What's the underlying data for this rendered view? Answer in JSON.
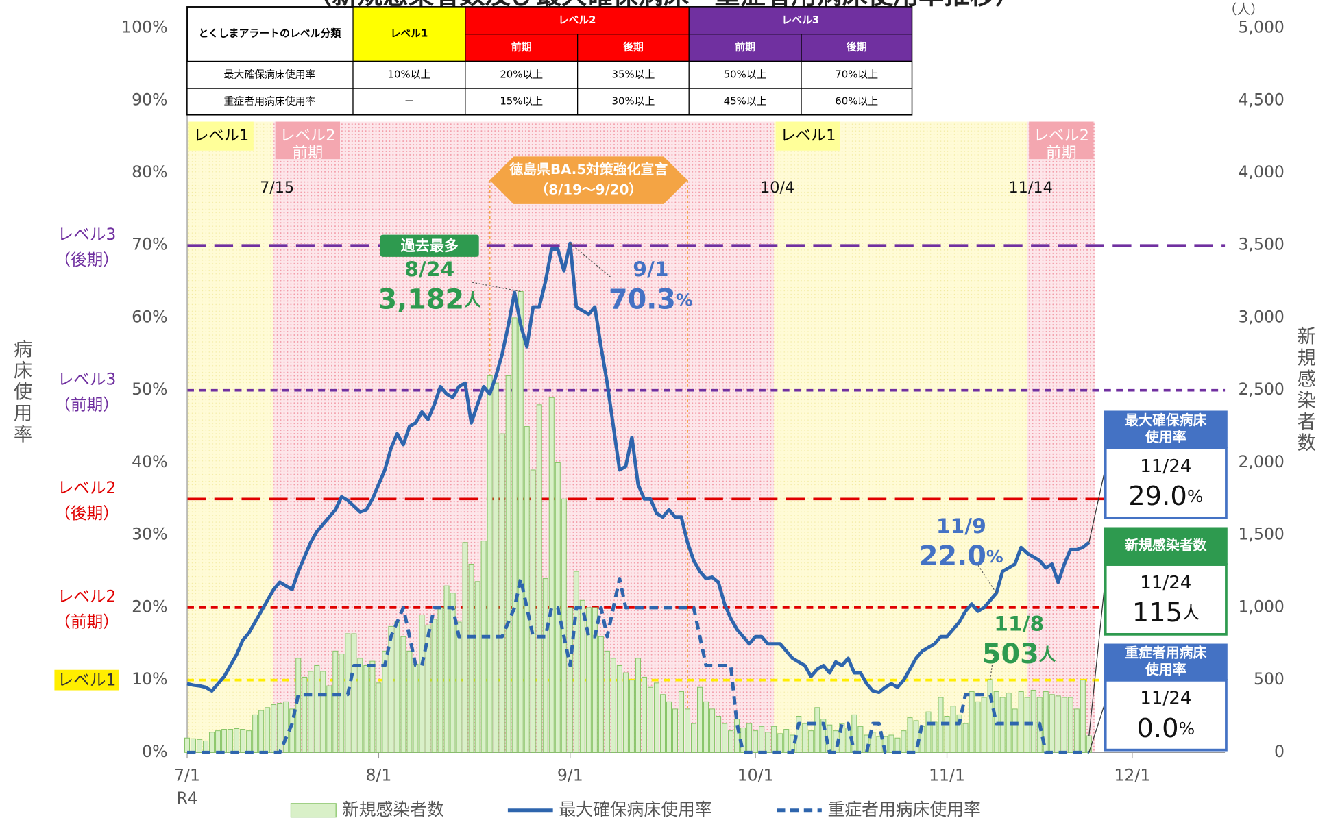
{
  "chart_data": {
    "type": "combo",
    "title": "（新規感染者数及び最大確保病床・重症者用病床使用率推移）",
    "y_label": [
      "病",
      "床",
      "使",
      "用",
      "率"
    ],
    "y2_label": [
      "新",
      "規",
      "感",
      "染",
      "者",
      "数"
    ],
    "y2_unit": "（人）",
    "x_sub_label": "R4",
    "xlim": [
      0,
      168
    ],
    "xticks": [
      {
        "value": 0,
        "label": "7/1"
      },
      {
        "value": 31,
        "label": "8/1"
      },
      {
        "value": 62,
        "label": "9/1"
      },
      {
        "value": 92,
        "label": "10/1"
      },
      {
        "value": 123,
        "label": "11/1"
      },
      {
        "value": 153,
        "label": "12/1"
      }
    ],
    "ylim": [
      0,
      100
    ],
    "yticks": [
      {
        "value": 0,
        "label": "0%"
      },
      {
        "value": 10,
        "label": "10%"
      },
      {
        "value": 20,
        "label": "20%"
      },
      {
        "value": 30,
        "label": "30%"
      },
      {
        "value": 40,
        "label": "40%"
      },
      {
        "value": 50,
        "label": "50%"
      },
      {
        "value": 60,
        "label": "60%"
      },
      {
        "value": 70,
        "label": "70%"
      },
      {
        "value": 80,
        "label": "80%"
      },
      {
        "value": 90,
        "label": "90%"
      },
      {
        "value": 100,
        "label": "100%"
      }
    ],
    "y2lim": [
      0,
      5000
    ],
    "y2ticks": [
      0,
      500,
      {
        "value": 1000,
        "label": "1,000"
      },
      {
        "value": 1500,
        "label": "1,500"
      },
      {
        "value": 2000,
        "label": "2,000"
      },
      {
        "value": 2500,
        "label": "2,500"
      },
      {
        "value": 3000,
        "label": "3,000"
      },
      {
        "value": 3500,
        "label": "3,500"
      },
      {
        "value": 4000,
        "label": "4,000"
      },
      {
        "value": 4500,
        "label": "4,500"
      },
      {
        "value": 5000,
        "label": "5,000"
      }
    ],
    "grid": false,
    "x": [
      0,
      1,
      2,
      3,
      4,
      5,
      6,
      7,
      8,
      9,
      10,
      11,
      12,
      13,
      14,
      15,
      16,
      17,
      18,
      19,
      20,
      21,
      22,
      23,
      24,
      25,
      26,
      27,
      28,
      29,
      30,
      31,
      32,
      33,
      34,
      35,
      36,
      37,
      38,
      39,
      40,
      41,
      42,
      43,
      44,
      45,
      46,
      47,
      48,
      49,
      50,
      51,
      52,
      53,
      54,
      55,
      56,
      57,
      58,
      59,
      60,
      61,
      62,
      63,
      64,
      65,
      66,
      67,
      68,
      69,
      70,
      71,
      72,
      73,
      74,
      75,
      76,
      77,
      78,
      79,
      80,
      81,
      82,
      83,
      84,
      85,
      86,
      87,
      88,
      89,
      90,
      91,
      92,
      93,
      94,
      95,
      96,
      97,
      98,
      99,
      100,
      101,
      102,
      103,
      104,
      105,
      106,
      107,
      108,
      109,
      110,
      111,
      112,
      113,
      114,
      115,
      116,
      117,
      118,
      119,
      120,
      121,
      122,
      123,
      124,
      125,
      126,
      127,
      128,
      129,
      130,
      131,
      132,
      133,
      134,
      135,
      136,
      137,
      138,
      139,
      140,
      141,
      142,
      143,
      144,
      145,
      146
    ],
    "series": [
      {
        "name": "新規感染者数",
        "type": "bar",
        "axis": "y2",
        "color": "#d9f0c8",
        "edge": "#86c466",
        "values": [
          100,
          95,
          90,
          80,
          140,
          150,
          160,
          160,
          165,
          160,
          150,
          260,
          290,
          310,
          330,
          340,
          350,
          300,
          650,
          520,
          560,
          600,
          560,
          460,
          700,
          680,
          820,
          820,
          650,
          600,
          630,
          480,
          700,
          870,
          900,
          800,
          700,
          610,
          950,
          880,
          920,
          1000,
          1150,
          1100,
          900,
          1450,
          1300,
          1180,
          1460,
          2600,
          2550,
          2200,
          2600,
          3000,
          3182,
          2250,
          1950,
          2400,
          1200,
          2450,
          2000,
          1750,
          1000,
          1250,
          1050,
          1000,
          1000,
          800,
          700,
          650,
          600,
          550,
          500,
          650,
          520,
          450,
          480,
          400,
          350,
          300,
          420,
          300,
          200,
          450,
          350,
          300,
          250,
          200,
          150,
          230,
          170,
          200,
          150,
          180,
          140,
          180,
          130,
          160,
          120,
          250,
          200,
          150,
          310,
          230,
          190,
          150,
          200,
          170,
          260,
          180,
          120,
          140,
          110,
          110,
          120,
          100,
          150,
          240,
          220,
          180,
          280,
          210,
          380,
          250,
          320,
          260,
          200,
          420,
          350,
          380,
          503,
          420,
          380,
          410,
          300,
          420,
          380,
          430,
          380,
          420,
          400,
          390,
          380,
          380,
          300,
          500,
          115
        ]
      },
      {
        "name": "最大確保病床使用率",
        "type": "line",
        "axis": "y",
        "color": "#2e65ad",
        "dash": false,
        "values": [
          9.5,
          9.3,
          9.2,
          9,
          8.5,
          9.5,
          10.5,
          12,
          13.5,
          15.5,
          16.5,
          18,
          19.5,
          21,
          22.5,
          23.5,
          23,
          22.5,
          25,
          27,
          29,
          30.5,
          31.5,
          32.5,
          33.5,
          35.3,
          34.8,
          34,
          33.2,
          33.5,
          35,
          37,
          39,
          42,
          44,
          42.5,
          45,
          45.5,
          47,
          46,
          48,
          50.5,
          49.5,
          49,
          50.5,
          51,
          45.5,
          48,
          50.5,
          49.5,
          52,
          55,
          59,
          63.5,
          59,
          56,
          61.5,
          61.5,
          65,
          69.5,
          69.5,
          66.5,
          70.3,
          61.5,
          61,
          60.5,
          61.5,
          56,
          51,
          45,
          39,
          39.5,
          43.5,
          37,
          35,
          35,
          33,
          32.5,
          33.5,
          32.5,
          32.5,
          29,
          26.5,
          25,
          24,
          24.2,
          23.5,
          20.5,
          18.5,
          17,
          16,
          15,
          16,
          16,
          15,
          15,
          15,
          14,
          13,
          12.5,
          12,
          10.5,
          11.5,
          12,
          11,
          12.5,
          12,
          13,
          11,
          11,
          9.5,
          8.5,
          8.3,
          9,
          9.5,
          9,
          10,
          11.5,
          13,
          14,
          14.5,
          15,
          16,
          16,
          17,
          18,
          19.5,
          20.5,
          19.5,
          20,
          21,
          22.0,
          25,
          25.5,
          26,
          28.3,
          27.5,
          27,
          26.5,
          25.5,
          26,
          23.5,
          26,
          28,
          28,
          28.3,
          29.0
        ]
      },
      {
        "name": "重症者用病床使用率",
        "type": "line",
        "axis": "y",
        "color": "#2e65ad",
        "dash": true,
        "values": [
          0,
          0,
          0,
          0,
          0,
          0,
          0,
          0,
          0,
          0,
          0,
          0,
          0,
          0,
          0,
          0,
          2,
          4,
          8,
          8,
          8,
          8,
          8,
          8,
          8,
          8,
          8,
          12,
          12,
          12,
          12,
          12,
          12,
          16,
          18,
          20,
          16,
          12,
          12,
          16,
          20,
          20,
          20,
          20,
          16,
          16,
          16,
          16,
          16,
          16,
          16,
          16,
          18,
          20,
          24,
          20,
          16,
          16,
          16,
          20,
          20,
          16,
          12,
          20,
          20,
          16,
          16,
          20,
          16,
          20,
          24,
          20,
          20,
          20,
          20,
          20,
          20,
          20,
          20,
          20,
          20,
          20,
          20,
          16,
          12,
          12,
          12,
          12,
          12,
          4,
          0,
          0,
          0,
          0,
          0,
          0,
          0,
          0,
          0,
          4,
          4,
          4,
          4,
          4,
          0,
          0,
          4,
          4,
          0,
          0,
          0,
          4,
          4,
          0,
          0,
          0,
          0,
          0,
          0,
          4,
          4,
          4,
          4,
          4,
          4,
          4,
          8,
          8,
          8,
          8,
          8,
          4,
          4,
          4,
          4,
          4,
          4,
          4,
          4,
          0,
          0,
          0,
          0,
          0,
          0,
          0,
          0.0
        ]
      }
    ],
    "thresholds": [
      {
        "value": 70,
        "label": [
          "レベル3",
          "（後期）"
        ],
        "color": "#7030a0",
        "dash": "long"
      },
      {
        "value": 50,
        "label": [
          "レベル3",
          "（前期）"
        ],
        "color": "#7030a0",
        "dash": "short"
      },
      {
        "value": 35,
        "label": [
          "レベル2",
          "（後期）"
        ],
        "color": "#e00000",
        "dash": "long"
      },
      {
        "value": 20,
        "label": [
          "レベル2",
          "（前期）"
        ],
        "color": "#e00000",
        "dash": "short"
      },
      {
        "value": 10,
        "label": [
          "レベル1"
        ],
        "color": "#ffee00",
        "dash": "short"
      }
    ],
    "phases": [
      {
        "start": 0,
        "label": [
          "レベル1"
        ],
        "color": "#fffbd6",
        "label_color": "#ffff99"
      },
      {
        "start": 14,
        "date": "7/15",
        "label": [
          "レベル2",
          "前期"
        ],
        "color": "#fde6ea",
        "label_color": "#f4a7b0"
      },
      {
        "start": 95,
        "date": "10/4",
        "label": [
          "レベル1"
        ],
        "color": "#fffbd6",
        "label_color": "#ffff99"
      },
      {
        "start": 136,
        "date": "11/14",
        "label": [
          "レベル2",
          "前期"
        ],
        "color": "#fde6ea",
        "label_color": "#f4a7b0"
      }
    ],
    "declaration": {
      "title": [
        "徳島県BA.5対策強化宣言",
        "（8/19～9/20）"
      ],
      "start": 49,
      "end": 81,
      "color": "#f4a444"
    },
    "annotations": [
      {
        "series": 0,
        "x": 54,
        "tag": "過去最多",
        "date": "8/24",
        "label": "3,182",
        "unit": "人",
        "color": "#2e9a4f"
      },
      {
        "series": 1,
        "x": 62,
        "date": "9/1",
        "label": "70.3",
        "unit": "%",
        "color": "#4472c4"
      },
      {
        "series": 1,
        "x": 131,
        "date": "11/9",
        "label": "22.0",
        "unit": "%",
        "color": "#4472c4"
      },
      {
        "series": 0,
        "x": 130,
        "date": "11/8",
        "label": "503",
        "unit": "人",
        "color": "#2e9a4f"
      }
    ],
    "callouts": [
      {
        "series": 1,
        "title": [
          "最大確保病床",
          "使用率"
        ],
        "date": "11/24",
        "label": "29.0",
        "unit": "%",
        "color": "#4472c4"
      },
      {
        "series": 0,
        "title": [
          "新規感染者数"
        ],
        "date": "11/24",
        "label": "115",
        "unit": "人",
        "color": "#2e9a4f"
      },
      {
        "series": 2,
        "title": [
          "重症者用病床",
          "使用率"
        ],
        "date": "11/24",
        "label": "0.0",
        "unit": "%",
        "color": "#4472c4"
      }
    ],
    "alert_table": {
      "corner": "とくしまアラートのレベル分類",
      "levels": [
        {
          "name": "レベル1",
          "color": "#ffff00",
          "text_color": "#000",
          "sub": []
        },
        {
          "name": "レベル2",
          "color": "#ff0000",
          "text_color": "#fff",
          "sub": [
            "前期",
            "後期"
          ]
        },
        {
          "name": "レベル3",
          "color": "#7030a0",
          "text_color": "#fff",
          "sub": [
            "前期",
            "後期"
          ]
        }
      ],
      "rows": [
        {
          "label": "最大確保病床使用率",
          "cells": [
            "10%以上",
            "20%以上",
            "35%以上",
            "50%以上",
            "70%以上"
          ]
        },
        {
          "label": "重症者用病床使用率",
          "cells": [
            "－",
            "15%以上",
            "30%以上",
            "45%以上",
            "60%以上"
          ]
        }
      ]
    }
  }
}
